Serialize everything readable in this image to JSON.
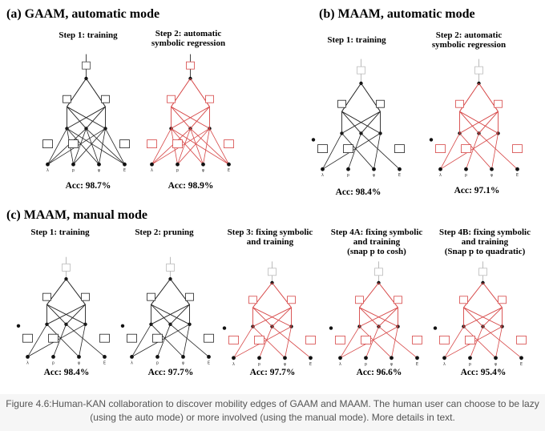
{
  "sections": {
    "a": "(a) GAAM, automatic mode",
    "b": "(b) MAAM, automatic mode",
    "c": "(c) MAAM, manual mode"
  },
  "steps": {
    "a1": [
      "Step 1: training"
    ],
    "a2": [
      "Step 2: automatic",
      "symbolic regression"
    ],
    "b1": [
      "Step 1: training"
    ],
    "b2": [
      "Step 2: automatic",
      "symbolic regression"
    ],
    "c1": [
      "Step 1: training"
    ],
    "c2": [
      "Step 2: pruning"
    ],
    "c3": [
      "Step 3: fixing symbolic",
      "and training"
    ],
    "c4a": [
      "Step 4A: fixing symbolic",
      "and training",
      "(snap p to cosh)"
    ],
    "c4b": [
      "Step 4B: fixing symbolic",
      "and training",
      "(Snap p to quadratic)"
    ]
  },
  "acc": {
    "a1": "Acc: 98.7%",
    "a2": "Acc: 98.9%",
    "b1": "Acc: 98.4%",
    "b2": "Acc: 97.1%",
    "c1": "Acc: 98.4%",
    "c2": "Acc: 97.7%",
    "c3": "Acc: 97.7%",
    "c4a": "Acc: 96.6%",
    "c4b": "Acc: 95.4%"
  },
  "colors": {
    "trained": "#222222",
    "symbolic": "#d64545",
    "faint": "#bbbbbb"
  },
  "caption": "Figure 4.6:Human-KAN collaboration to discover mobility edges of GAAM and MAAM. The human user can choose to be lazy (using the auto mode) or more involved (using the manual mode). More details in text."
}
